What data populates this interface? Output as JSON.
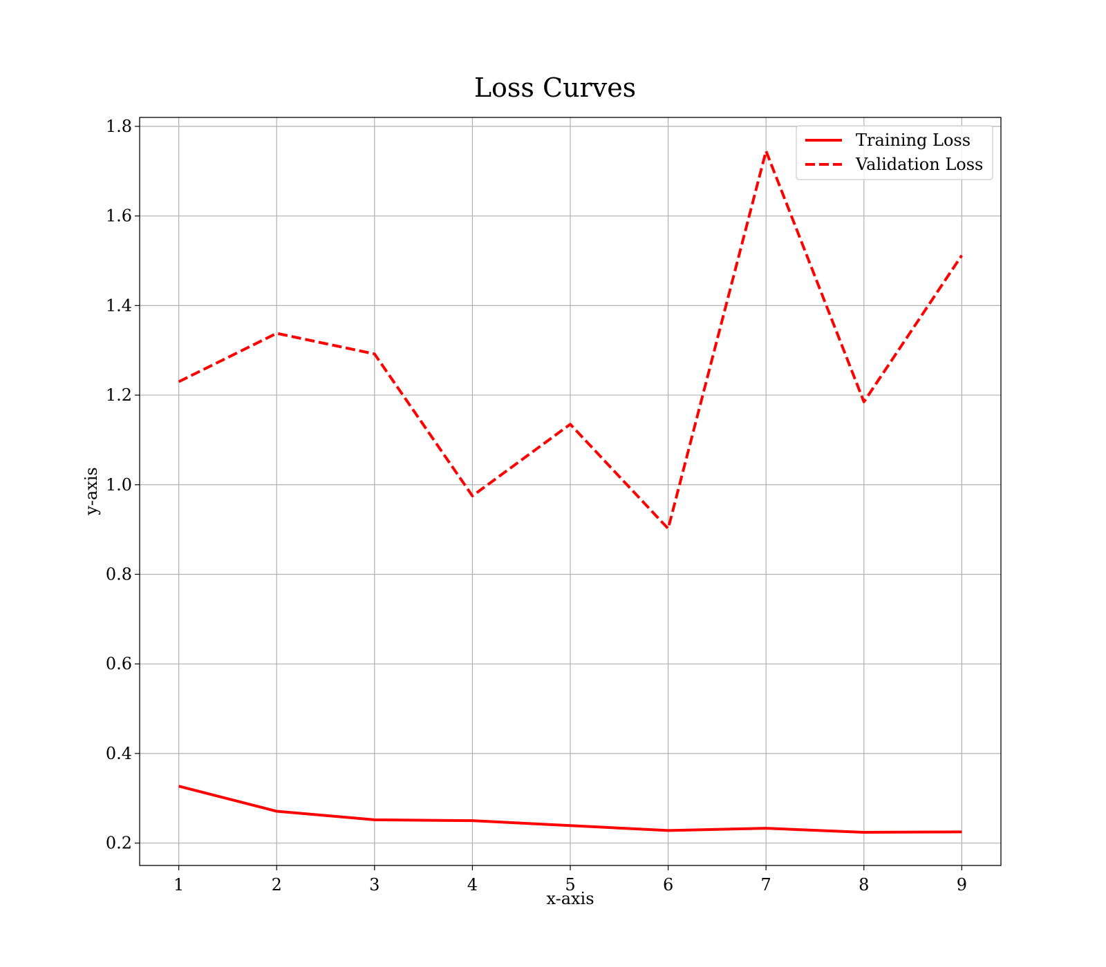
{
  "chart_data": {
    "type": "line",
    "title": "Loss Curves",
    "xlabel": "x-axis",
    "ylabel": "y-axis",
    "x": [
      1,
      2,
      3,
      4,
      5,
      6,
      7,
      8,
      9
    ],
    "xticks": [
      "1",
      "2",
      "3",
      "4",
      "5",
      "6",
      "7",
      "8",
      "9"
    ],
    "yticks": [
      "0.2",
      "0.4",
      "0.6",
      "0.8",
      "1.0",
      "1.2",
      "1.4",
      "1.6",
      "1.8"
    ],
    "xlim": [
      0.6,
      9.4
    ],
    "ylim": [
      0.15,
      1.82
    ],
    "grid": true,
    "legend_position": "top-right",
    "series": [
      {
        "name": "Training Loss",
        "style": "solid",
        "color": "#ff0000",
        "values": [
          0.327,
          0.271,
          0.252,
          0.25,
          0.239,
          0.228,
          0.233,
          0.224,
          0.225
        ]
      },
      {
        "name": "Validation Loss",
        "style": "dashed",
        "color": "#ff0000",
        "values": [
          1.23,
          1.338,
          1.292,
          0.975,
          1.135,
          0.902,
          1.745,
          1.185,
          1.512
        ]
      }
    ]
  }
}
